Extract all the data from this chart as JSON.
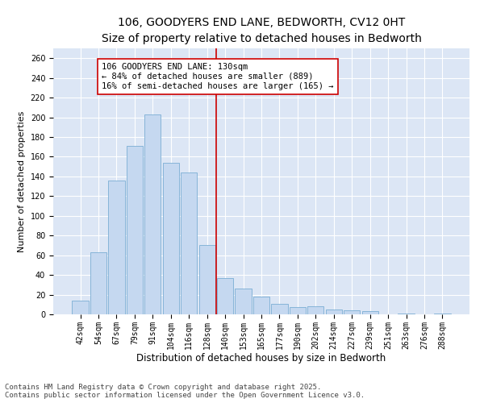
{
  "title": "106, GOODYERS END LANE, BEDWORTH, CV12 0HT",
  "subtitle": "Size of property relative to detached houses in Bedworth",
  "xlabel": "Distribution of detached houses by size in Bedworth",
  "ylabel": "Number of detached properties",
  "categories": [
    "42sqm",
    "54sqm",
    "67sqm",
    "79sqm",
    "91sqm",
    "104sqm",
    "116sqm",
    "128sqm",
    "140sqm",
    "153sqm",
    "165sqm",
    "177sqm",
    "190sqm",
    "202sqm",
    "214sqm",
    "227sqm",
    "239sqm",
    "251sqm",
    "263sqm",
    "276sqm",
    "288sqm"
  ],
  "values": [
    14,
    63,
    136,
    171,
    203,
    154,
    144,
    70,
    37,
    26,
    18,
    11,
    7,
    8,
    5,
    4,
    3,
    0,
    1,
    0,
    1
  ],
  "bar_color": "#c5d8f0",
  "bar_edge_color": "#7aadd4",
  "vline_x": 7.5,
  "vline_color": "#cc0000",
  "annotation_text": "106 GOODYERS END LANE: 130sqm\n← 84% of detached houses are smaller (889)\n16% of semi-detached houses are larger (165) →",
  "annotation_box_color": "#ffffff",
  "annotation_box_edge": "#cc0000",
  "ylim": [
    0,
    270
  ],
  "yticks": [
    0,
    20,
    40,
    60,
    80,
    100,
    120,
    140,
    160,
    180,
    200,
    220,
    240,
    260
  ],
  "bg_color": "#dce6f5",
  "fig_bg_color": "#ffffff",
  "footer": "Contains HM Land Registry data © Crown copyright and database right 2025.\nContains public sector information licensed under the Open Government Licence v3.0.",
  "title_fontsize": 10,
  "subtitle_fontsize": 9,
  "xlabel_fontsize": 8.5,
  "ylabel_fontsize": 8,
  "tick_fontsize": 7,
  "annotation_fontsize": 7.5,
  "footer_fontsize": 6.5
}
